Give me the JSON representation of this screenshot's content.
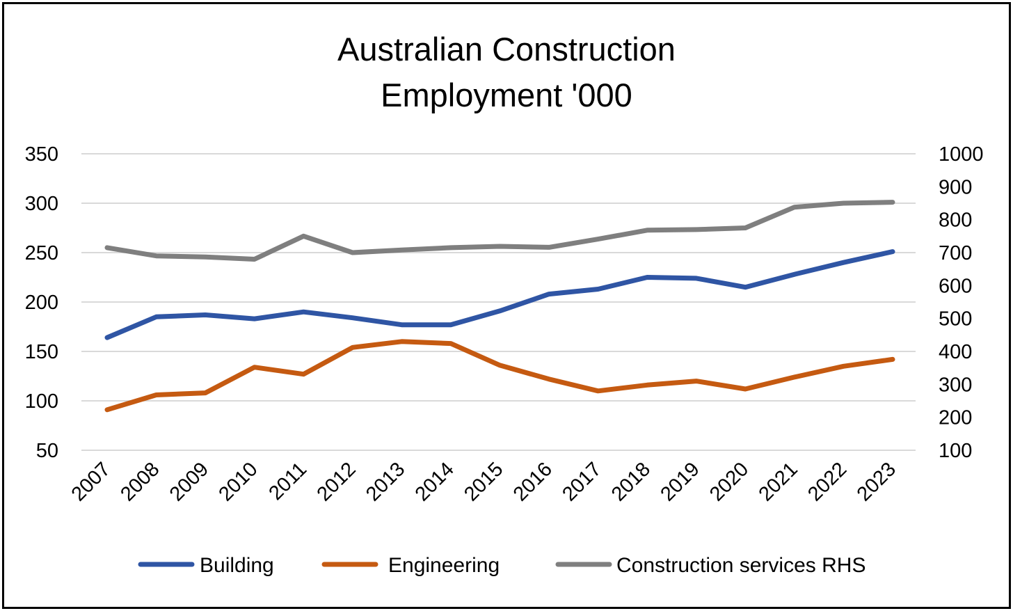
{
  "chart_data": {
    "type": "line",
    "title_lines": [
      "Australian Construction",
      "Employment '000"
    ],
    "categories": [
      "2007",
      "2008",
      "2009",
      "2010",
      "2011",
      "2012",
      "2013",
      "2014",
      "2015",
      "2016",
      "2017",
      "2018",
      "2019",
      "2020",
      "2021",
      "2022",
      "2023"
    ],
    "y_left": {
      "ylim": [
        50,
        350
      ],
      "ticks": [
        50,
        100,
        150,
        200,
        250,
        300,
        350
      ]
    },
    "y_right": {
      "ylim": [
        100,
        1000
      ],
      "ticks": [
        100,
        200,
        300,
        400,
        500,
        600,
        700,
        800,
        900,
        1000
      ]
    },
    "grid": true,
    "legend_position": "bottom",
    "series": [
      {
        "name": "Building",
        "axis": "left",
        "color": "#2F55A4",
        "values": [
          164,
          185,
          187,
          183,
          190,
          184,
          177,
          177,
          191,
          208,
          213,
          225,
          224,
          215,
          228,
          240,
          251
        ]
      },
      {
        "name": "Engineering",
        "axis": "left",
        "color": "#C55A11",
        "values": [
          91,
          106,
          108,
          134,
          127,
          154,
          160,
          158,
          136,
          122,
          110,
          116,
          120,
          112,
          124,
          135,
          142
        ]
      },
      {
        "name": "Construction services RHS",
        "axis": "right",
        "color": "#7F7F7F",
        "values": [
          715,
          690,
          687,
          680,
          750,
          700,
          708,
          715,
          719,
          716,
          741,
          768,
          770,
          775,
          838,
          850,
          853
        ]
      }
    ]
  }
}
